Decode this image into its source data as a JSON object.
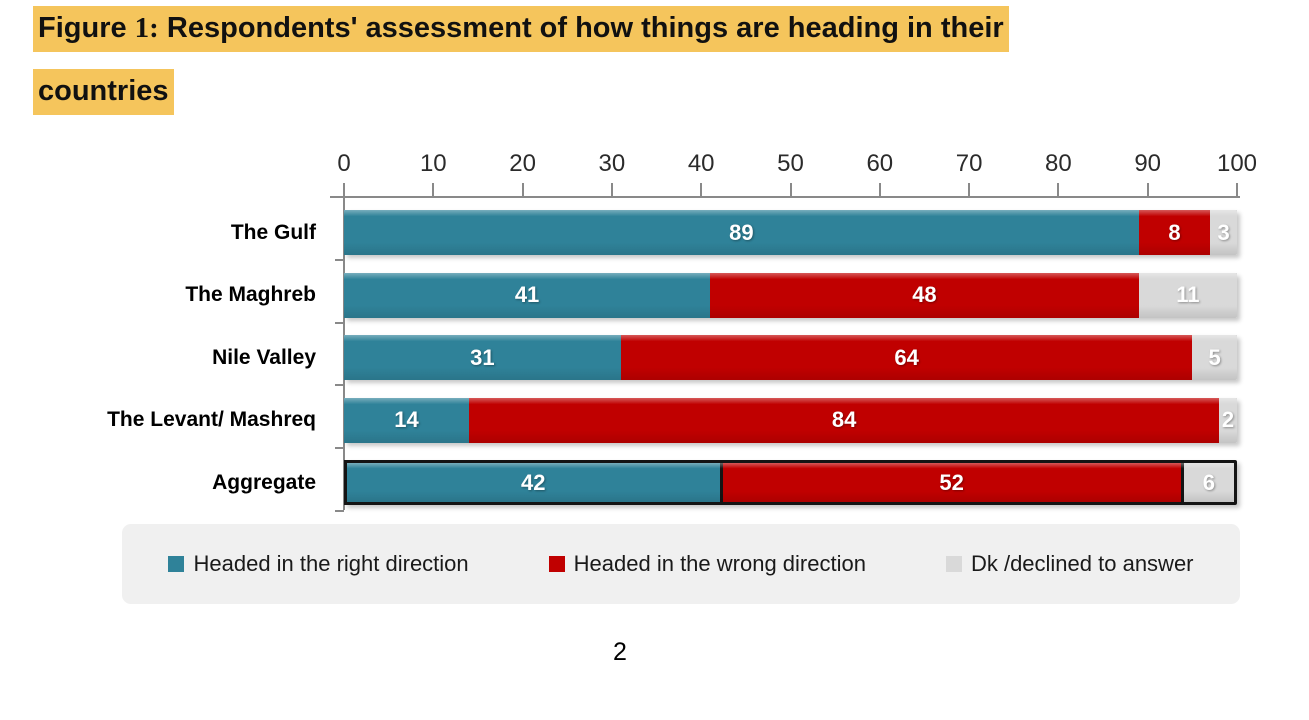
{
  "title": {
    "prefix": "Figure ",
    "figure_number": "1:",
    "rest": " Respondents' assessment of how things are heading in their",
    "line2": "countries",
    "highlight_color": "#F5C55C"
  },
  "chart_data": {
    "type": "bar",
    "orientation": "horizontal",
    "stacked": true,
    "title": "Figure 1: Respondents' assessment of how things are heading in their countries",
    "categories": [
      "The Gulf",
      "The Maghreb",
      "Nile Valley",
      "The Levant/ Mashreq",
      "Aggregate"
    ],
    "series": [
      {
        "name": "Headed in the right direction",
        "color": "#2F8299",
        "values": [
          89,
          41,
          31,
          14,
          42
        ]
      },
      {
        "name": "Headed in the wrong direction",
        "color": "#C00000",
        "values": [
          8,
          48,
          64,
          84,
          52
        ]
      },
      {
        "name": "Dk /declined to answer",
        "color": "#D9D9D9",
        "values": [
          3,
          11,
          5,
          2,
          6
        ]
      }
    ],
    "x_ticks": [
      0,
      10,
      20,
      30,
      40,
      50,
      60,
      70,
      80,
      90,
      100
    ],
    "xlim": [
      0,
      100
    ],
    "axis_position": "top",
    "legend_position": "bottom",
    "grid": false,
    "highlighted_category": "Aggregate",
    "data_labels": "white, centered in segments"
  },
  "page": {
    "number_label": "2"
  }
}
